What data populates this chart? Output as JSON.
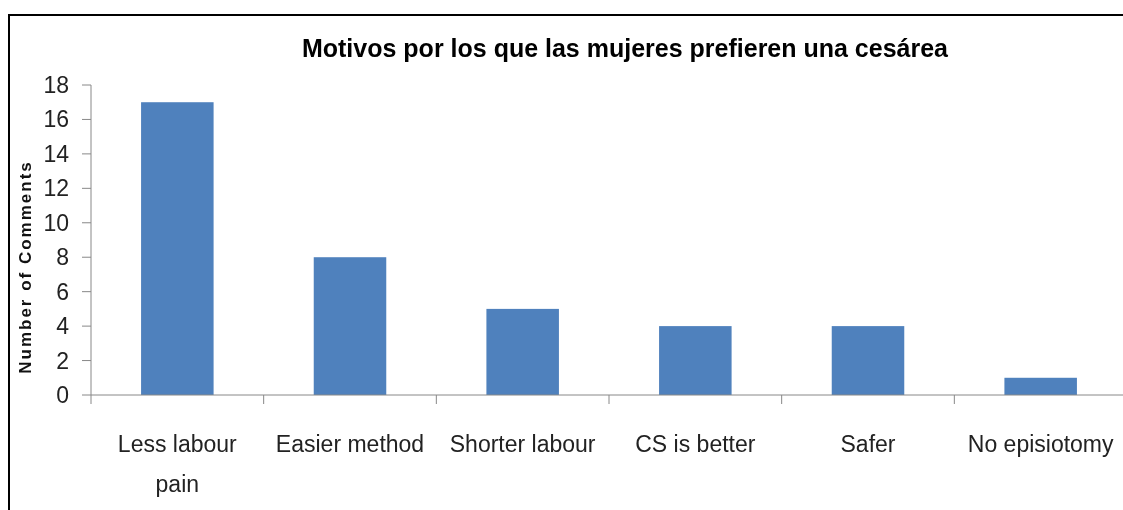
{
  "chart_data": {
    "type": "bar",
    "title": "Motivos por los que las mujeres prefieren una cesárea",
    "ylabel": "Number of Comments",
    "categories": [
      "Less labour pain",
      "Easier method",
      "Shorter labour",
      "CS is better",
      "Safer",
      "No episiotomy"
    ],
    "values": [
      17,
      8,
      5,
      4,
      4,
      1
    ],
    "color": "#4f81bd",
    "ylim": [
      0,
      18
    ],
    "yticks": [
      0,
      2,
      4,
      6,
      8,
      10,
      12,
      14,
      16,
      18
    ]
  }
}
